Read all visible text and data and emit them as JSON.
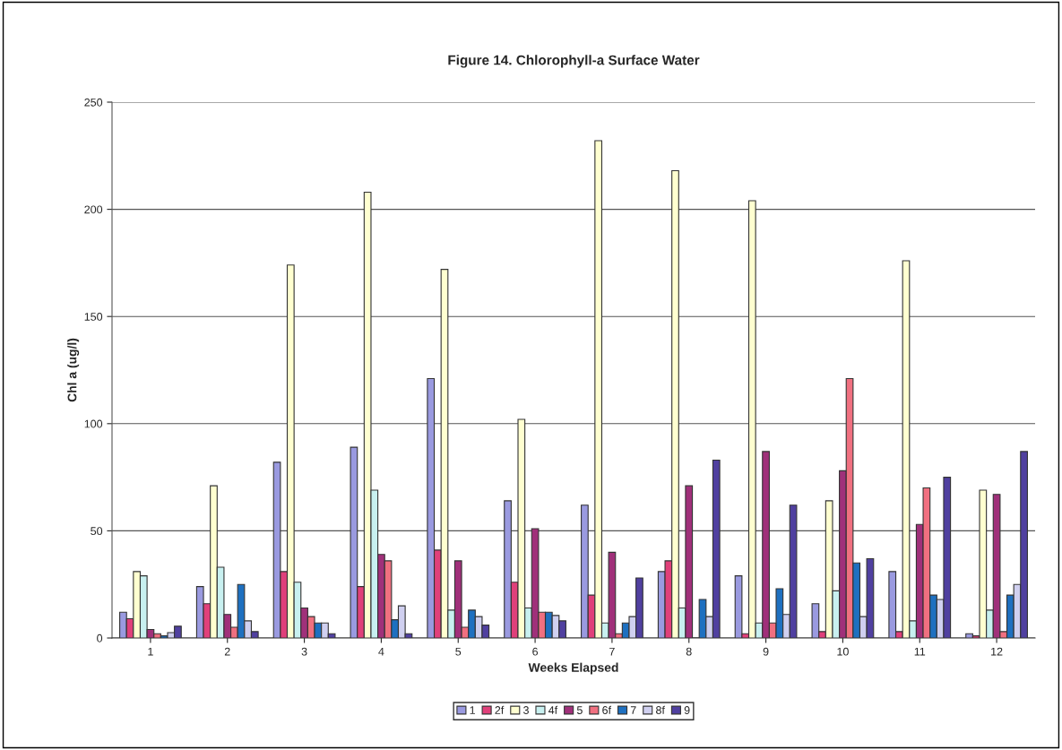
{
  "chart_data": {
    "type": "bar",
    "title": "Figure 14. Chlorophyll-a Surface Water",
    "xlabel": "Weeks Elapsed",
    "ylabel": "Chl a (ug/l)",
    "categories": [
      "1",
      "2",
      "3",
      "4",
      "5",
      "6",
      "7",
      "8",
      "9",
      "10",
      "11",
      "12"
    ],
    "series": [
      {
        "name": "1",
        "color": "#9a9ae0",
        "values": [
          12,
          24,
          82,
          89,
          121,
          64,
          62,
          31,
          29,
          16,
          31,
          2
        ]
      },
      {
        "name": "2f",
        "color": "#e0407a",
        "values": [
          9,
          16,
          31,
          24,
          41,
          26,
          20,
          36,
          2,
          3,
          3,
          1
        ]
      },
      {
        "name": "3",
        "color": "#ffffd0",
        "values": [
          31,
          71,
          174,
          208,
          172,
          102,
          232,
          218,
          204,
          64,
          176,
          69
        ]
      },
      {
        "name": "4f",
        "color": "#c8f0f0",
        "values": [
          29,
          33,
          26,
          69,
          13,
          14,
          7,
          14,
          7,
          22,
          8,
          13
        ]
      },
      {
        "name": "5",
        "color": "#a0307a",
        "values": [
          4,
          11,
          14,
          39,
          36,
          51,
          40,
          71,
          87,
          78,
          53,
          67
        ]
      },
      {
        "name": "6f",
        "color": "#f07080",
        "values": [
          2,
          5,
          10,
          36,
          5,
          12,
          2,
          null,
          7,
          121,
          70,
          3
        ]
      },
      {
        "name": "7",
        "color": "#1e70c0",
        "values": [
          1,
          25,
          7,
          8.5,
          13,
          12,
          7,
          18,
          23,
          35,
          20,
          20
        ]
      },
      {
        "name": "8f",
        "color": "#d0d0f0",
        "values": [
          2.5,
          8,
          7,
          15,
          10,
          10.5,
          10,
          10,
          11,
          10,
          18,
          25
        ]
      },
      {
        "name": "9",
        "color": "#5040a0",
        "values": [
          5.5,
          3,
          2,
          2,
          6,
          8,
          28,
          83,
          62,
          37,
          75,
          87
        ]
      }
    ],
    "ylim": [
      0,
      250
    ],
    "yticks": [
      0,
      50,
      100,
      150,
      200,
      250
    ],
    "grid": "y",
    "legend": "bottom"
  }
}
